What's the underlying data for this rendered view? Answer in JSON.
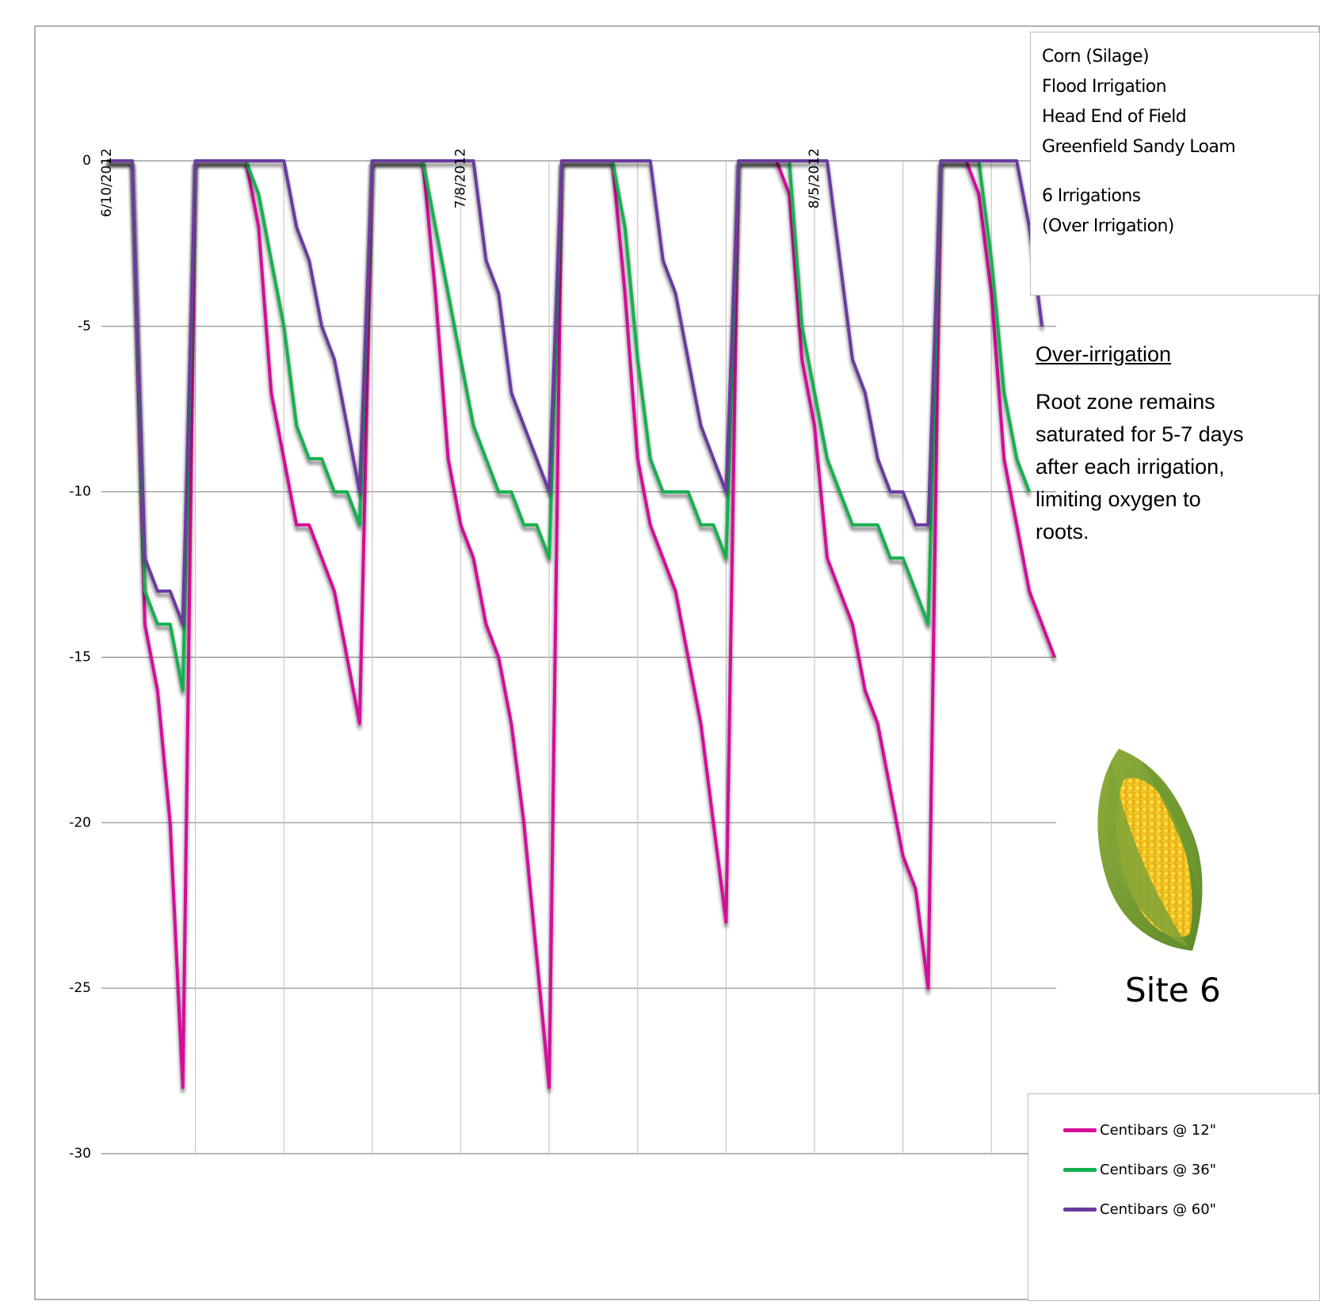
{
  "chart_data": {
    "type": "line",
    "x": [
      "2012-06-10",
      "2012-06-11",
      "2012-06-12",
      "2012-06-13",
      "2012-06-14",
      "2012-06-15",
      "2012-06-16",
      "2012-06-17",
      "2012-06-18",
      "2012-06-19",
      "2012-06-20",
      "2012-06-21",
      "2012-06-22",
      "2012-06-23",
      "2012-06-24",
      "2012-06-25",
      "2012-06-26",
      "2012-06-27",
      "2012-06-28",
      "2012-06-29",
      "2012-06-30",
      "2012-07-01",
      "2012-07-02",
      "2012-07-03",
      "2012-07-04",
      "2012-07-05",
      "2012-07-06",
      "2012-07-07",
      "2012-07-08",
      "2012-07-09",
      "2012-07-10",
      "2012-07-11",
      "2012-07-12",
      "2012-07-13",
      "2012-07-14",
      "2012-07-15",
      "2012-07-16",
      "2012-07-17",
      "2012-07-18",
      "2012-07-19",
      "2012-07-20",
      "2012-07-21",
      "2012-07-22",
      "2012-07-23",
      "2012-07-24",
      "2012-07-25",
      "2012-07-26",
      "2012-07-27",
      "2012-07-28",
      "2012-07-29",
      "2012-07-30",
      "2012-07-31",
      "2012-08-01",
      "2012-08-02",
      "2012-08-03",
      "2012-08-04",
      "2012-08-05",
      "2012-08-06",
      "2012-08-07",
      "2012-08-08",
      "2012-08-09",
      "2012-08-10",
      "2012-08-11",
      "2012-08-12",
      "2012-08-13",
      "2012-08-14",
      "2012-08-15",
      "2012-08-16",
      "2012-08-17",
      "2012-08-18",
      "2012-08-19",
      "2012-08-20",
      "2012-08-21",
      "2012-08-22",
      "2012-08-23",
      "2012-08-24"
    ],
    "series": [
      {
        "name": "Centibars @ 12\"",
        "color": "#d4109a",
        "values": [
          0,
          0,
          0,
          -14,
          -16,
          -20,
          -28,
          0,
          0,
          0,
          0,
          0,
          -2,
          -7,
          -9,
          -11,
          -11,
          -12,
          -13,
          -15,
          -17,
          0,
          0,
          0,
          0,
          0,
          -4,
          -9,
          -11,
          -12,
          -14,
          -15,
          -17,
          -20,
          -24,
          -28,
          0,
          0,
          0,
          0,
          0,
          -4,
          -9,
          -11,
          -12,
          -13,
          -15,
          -17,
          -20,
          -23,
          0,
          0,
          0,
          0,
          -1,
          -6,
          -8,
          -12,
          -13,
          -14,
          -16,
          -17,
          -19,
          -21,
          -22,
          -25,
          0,
          0,
          0,
          -1,
          -4,
          -9,
          -11,
          -13,
          -14,
          -15
        ]
      },
      {
        "name": "Centibars @ 36\"",
        "color": "#12b04f",
        "values": [
          0,
          0,
          0,
          -13,
          -14,
          -14,
          -16,
          0,
          0,
          0,
          0,
          0,
          -1,
          -3,
          -5,
          -8,
          -9,
          -9,
          -10,
          -10,
          -11,
          0,
          0,
          0,
          0,
          0,
          -2,
          -4,
          -6,
          -8,
          -9,
          -10,
          -10,
          -11,
          -11,
          -12,
          0,
          0,
          0,
          0,
          0,
          -2,
          -6,
          -9,
          -10,
          -10,
          -10,
          -11,
          -11,
          -12,
          0,
          0,
          0,
          0,
          0,
          -5,
          -7,
          -9,
          -10,
          -11,
          -11,
          -11,
          -12,
          -12,
          -13,
          -14,
          0,
          0,
          0,
          0,
          -3,
          -7,
          -9,
          -10,
          null,
          null
        ]
      },
      {
        "name": "Centibars @ 60\"",
        "color": "#6a3aa0",
        "values": [
          0,
          0,
          0,
          -12,
          -13,
          -13,
          -14,
          0,
          0,
          0,
          0,
          0,
          0,
          0,
          0,
          -2,
          -3,
          -5,
          -6,
          -8,
          -10,
          0,
          0,
          0,
          0,
          0,
          0,
          0,
          0,
          0,
          -3,
          -4,
          -7,
          -8,
          -9,
          -10,
          0,
          0,
          0,
          0,
          0,
          0,
          0,
          0,
          -3,
          -4,
          -6,
          -8,
          -9,
          -10,
          0,
          0,
          0,
          0,
          0,
          0,
          0,
          0,
          -3,
          -6,
          -7,
          -9,
          -10,
          -10,
          -11,
          -11,
          0,
          0,
          0,
          0,
          0,
          0,
          0,
          -2,
          -5,
          null
        ]
      }
    ],
    "xlim": [
      "2012-06-10",
      "2012-08-24"
    ],
    "xticks": [
      {
        "value": "2012-06-10",
        "label": "6/10/2012"
      },
      {
        "value": "2012-06-17",
        "label": null
      },
      {
        "value": "2012-06-24",
        "label": null
      },
      {
        "value": "2012-07-01",
        "label": null
      },
      {
        "value": "2012-07-08",
        "label": "7/8/2012"
      },
      {
        "value": "2012-07-15",
        "label": null
      },
      {
        "value": "2012-07-22",
        "label": null
      },
      {
        "value": "2012-07-29",
        "label": null
      },
      {
        "value": "2012-08-05",
        "label": "8/5/2012"
      },
      {
        "value": "2012-08-12",
        "label": null
      },
      {
        "value": "2012-08-19",
        "label": null
      }
    ],
    "ylim": [
      -30,
      0
    ],
    "yticks": [
      -30,
      -25,
      -20,
      -15,
      -10,
      -5,
      0
    ],
    "grid": true,
    "legend": "bottom-right",
    "info_lines": [
      "Corn (Silage)",
      "Flood Irrigation",
      "Head End of Field",
      "Greenfield Sandy Loam",
      "6 Irrigations",
      "(Over Irrigation)"
    ],
    "note_title": "Over-irrigation",
    "note_text": "Root zone remains saturated for 5-7 days after each irrigation, limiting oxygen to roots.",
    "site_label": "Site 6"
  }
}
